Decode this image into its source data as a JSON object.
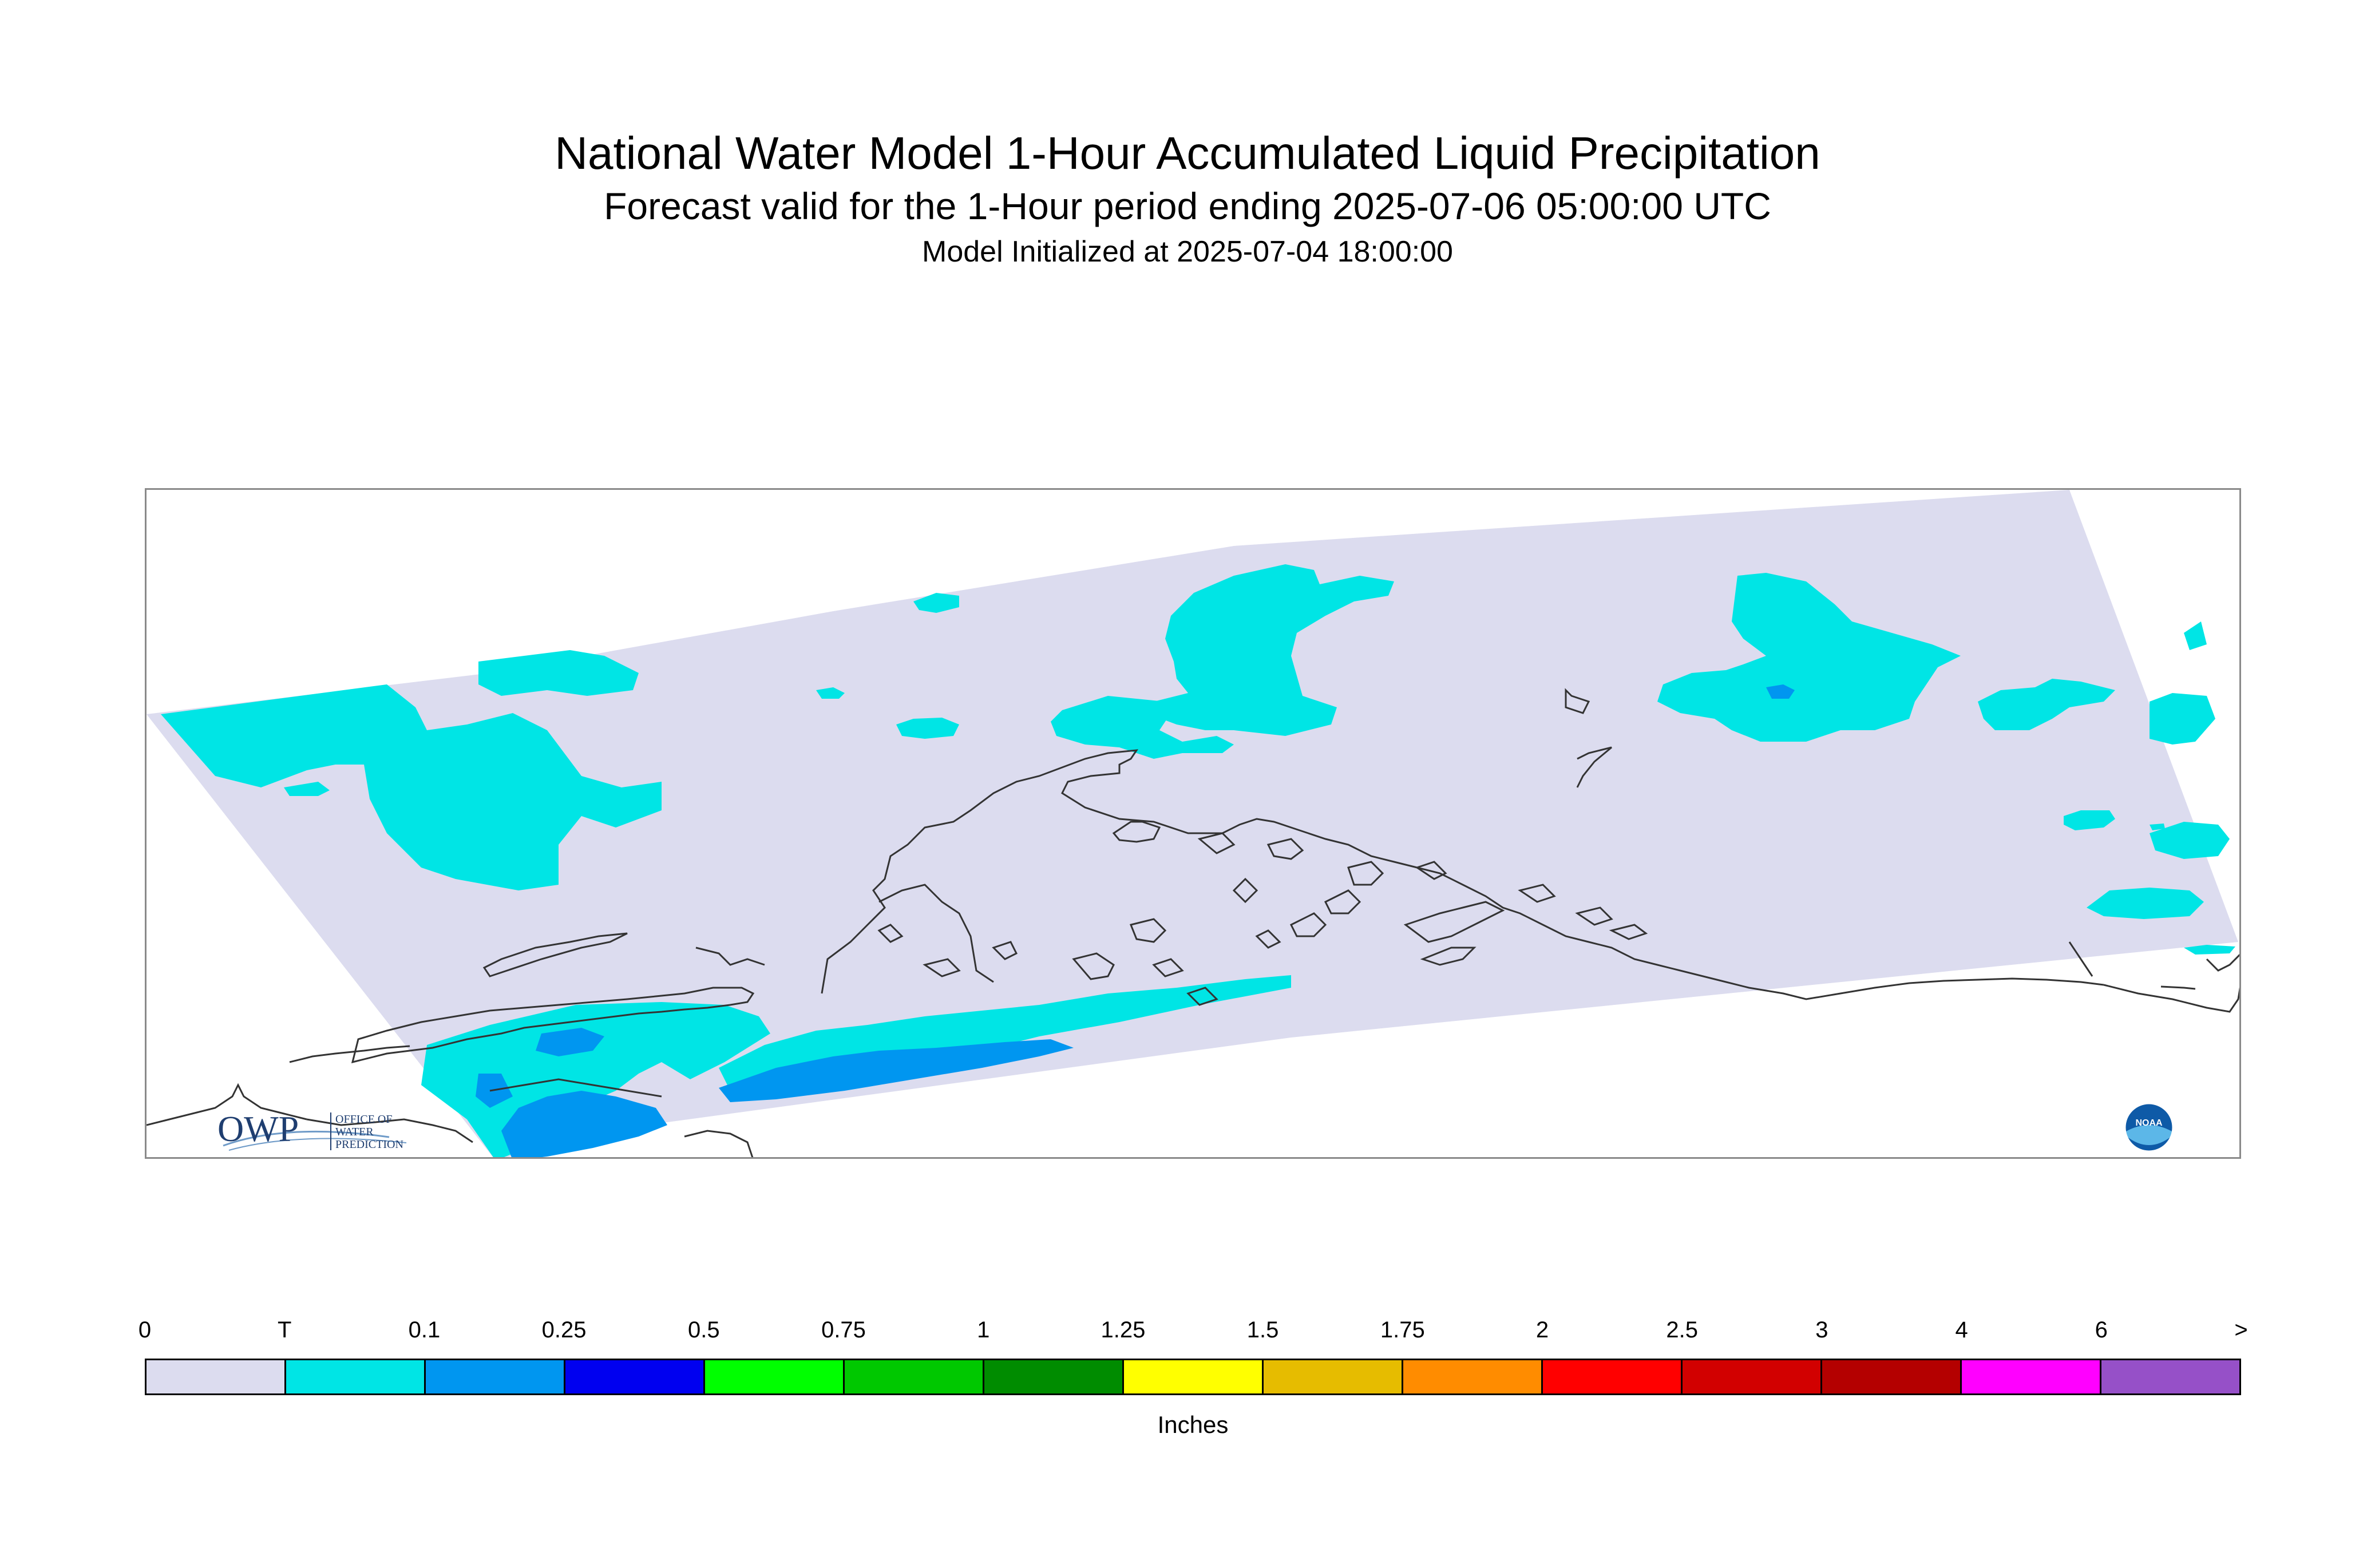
{
  "header": {
    "title": "National Water Model 1-Hour Accumulated Liquid Precipitation",
    "subtitle": "Forecast valid for the 1-Hour period ending 2025-07-06 05:00:00 UTC",
    "init": "Model Initialized at 2025-07-04 18:00:00"
  },
  "logos": {
    "owp_mark": "OWP",
    "owp_text_1": "OFFICE OF",
    "owp_text_2": "WATER",
    "owp_text_3": "PREDICTION",
    "noaa_mark": "NOAA"
  },
  "legend": {
    "units": "Inches",
    "tick_labels": [
      "0",
      "T",
      "0.1",
      "0.25",
      "0.5",
      "0.75",
      "1",
      "1.25",
      "1.5",
      "1.75",
      "2",
      "2.5",
      "3",
      "4",
      "6",
      ">"
    ],
    "colors": [
      "#dcdcef",
      "#00e5e5",
      "#0096f0",
      "#0000f0",
      "#00ff00",
      "#00c800",
      "#008c00",
      "#ffff00",
      "#e6bc00",
      "#ff8c00",
      "#ff0000",
      "#d20000",
      "#b40000",
      "#ff00ff",
      "#9650c8"
    ]
  },
  "map": {
    "domain_color": "#dcdcef",
    "trace_color": "#00e5e5",
    "light_color": "#0096f0",
    "moderate_color": "#0064f0",
    "coast_color": "#333333"
  }
}
